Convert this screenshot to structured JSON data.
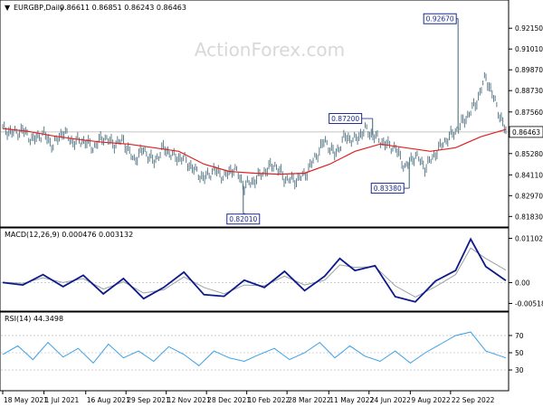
{
  "chart_data": [
    {
      "type": "line",
      "panel": "price",
      "header": {
        "symbol": "EURGBP,Daily",
        "ohlc": "0.86611 0.86851 0.86243 0.86463"
      },
      "watermark": "ActionForex.com",
      "ylim": [
        0.815,
        0.934
      ],
      "yticks": [
        "0.92150",
        "0.91010",
        "0.89870",
        "0.88730",
        "0.87560",
        "0.86463",
        "0.85280",
        "0.84110",
        "0.82970",
        "0.81830"
      ],
      "ytick_values": [
        0.9215,
        0.9101,
        0.8987,
        0.8873,
        0.8756,
        0.86463,
        0.8528,
        0.8411,
        0.8297,
        0.8183
      ],
      "current_price": {
        "label": "0.86463",
        "value": 0.86463
      },
      "series": [
        {
          "kind": "bars",
          "color": "#5d7d8a",
          "x": [
            0,
            0.02,
            0.04,
            0.06,
            0.08,
            0.1,
            0.12,
            0.14,
            0.16,
            0.18,
            0.2,
            0.22,
            0.24,
            0.26,
            0.28,
            0.3,
            0.32,
            0.34,
            0.36,
            0.38,
            0.4,
            0.42,
            0.44,
            0.46,
            0.48,
            0.5,
            0.52,
            0.54,
            0.56,
            0.58,
            0.6,
            0.62,
            0.64,
            0.66,
            0.68,
            0.7,
            0.72,
            0.74,
            0.76,
            0.78,
            0.8,
            0.82,
            0.84,
            0.86,
            0.88,
            0.9,
            0.92,
            0.94,
            0.96,
            0.98,
            1.0
          ],
          "values": [
            0.8665,
            0.864,
            0.8655,
            0.86,
            0.864,
            0.857,
            0.865,
            0.859,
            0.86,
            0.856,
            0.862,
            0.858,
            0.86,
            0.849,
            0.855,
            0.848,
            0.856,
            0.851,
            0.85,
            0.844,
            0.839,
            0.844,
            0.84,
            0.845,
            0.835,
            0.838,
            0.843,
            0.847,
            0.839,
            0.838,
            0.841,
            0.85,
            0.86,
            0.852,
            0.862,
            0.86,
            0.866,
            0.862,
            0.858,
            0.856,
            0.845,
            0.852,
            0.845,
            0.853,
            0.86,
            0.865,
            0.872,
            0.88,
            0.895,
            0.88,
            0.8646
          ]
        },
        {
          "kind": "ma",
          "color": "#e02020",
          "x": [
            0,
            0.05,
            0.1,
            0.15,
            0.2,
            0.25,
            0.3,
            0.35,
            0.4,
            0.45,
            0.5,
            0.55,
            0.6,
            0.65,
            0.7,
            0.75,
            0.8,
            0.85,
            0.9,
            0.95,
            1.0
          ],
          "values": [
            0.8665,
            0.865,
            0.8625,
            0.8605,
            0.859,
            0.858,
            0.856,
            0.854,
            0.847,
            0.843,
            0.842,
            0.8415,
            0.842,
            0.847,
            0.854,
            0.858,
            0.856,
            0.854,
            0.856,
            0.862,
            0.866
          ]
        }
      ],
      "annotations": [
        {
          "label": "0.92670",
          "x": 0.905,
          "value": 0.9267
        },
        {
          "label": "0.87200",
          "x": 0.735,
          "value": 0.872
        },
        {
          "label": "0.83380",
          "x": 0.808,
          "value": 0.8338
        },
        {
          "label": "0.82010",
          "x": 0.478,
          "value": 0.8201
        }
      ]
    },
    {
      "type": "line",
      "panel": "macd",
      "header": {
        "label": "MACD(12,26,9) 0.000476 0.003132"
      },
      "ylim": [
        -0.0062,
        0.0118
      ],
      "yticks": [
        "0.011023",
        "0.00",
        "-0.005182"
      ],
      "ytick_values": [
        0.011023,
        0.0,
        -0.005182
      ],
      "series": [
        {
          "kind": "macd",
          "color": "#0d1a8a",
          "x": [
            0,
            0.04,
            0.08,
            0.12,
            0.16,
            0.2,
            0.24,
            0.28,
            0.32,
            0.36,
            0.4,
            0.44,
            0.48,
            0.52,
            0.56,
            0.6,
            0.64,
            0.67,
            0.7,
            0.74,
            0.78,
            0.82,
            0.86,
            0.9,
            0.93,
            0.96,
            1.0
          ],
          "values": [
            0.0,
            -0.0006,
            0.002,
            -0.001,
            0.0018,
            -0.0028,
            0.001,
            -0.004,
            -0.0012,
            0.0026,
            -0.003,
            -0.0034,
            0.0006,
            -0.0012,
            0.0028,
            -0.002,
            0.0016,
            0.006,
            0.003,
            0.0042,
            -0.0035,
            -0.0048,
            0.0004,
            0.003,
            0.0108,
            0.004,
            0.0005
          ]
        },
        {
          "kind": "signal",
          "color": "#9aa0a6",
          "x": [
            0,
            0.04,
            0.08,
            0.12,
            0.16,
            0.2,
            0.24,
            0.28,
            0.32,
            0.36,
            0.4,
            0.44,
            0.48,
            0.52,
            0.56,
            0.6,
            0.64,
            0.67,
            0.7,
            0.74,
            0.78,
            0.82,
            0.86,
            0.9,
            0.93,
            0.96,
            1.0
          ],
          "values": [
            0.0001,
            -0.0002,
            0.0012,
            0.0,
            0.001,
            -0.0016,
            0.0002,
            -0.0026,
            -0.0018,
            0.0014,
            -0.0012,
            -0.0028,
            -0.0006,
            -0.0008,
            0.0016,
            -0.0006,
            0.0006,
            0.0044,
            0.0038,
            0.004,
            -0.0008,
            -0.0036,
            -0.001,
            0.002,
            0.0086,
            0.006,
            0.0031
          ]
        }
      ]
    },
    {
      "type": "line",
      "panel": "rsi",
      "header": {
        "label": "RSI(14) 44.3498"
      },
      "ylim": [
        8,
        92
      ],
      "yticks": [
        "70",
        "50",
        "30"
      ],
      "ytick_values": [
        70,
        50,
        30
      ],
      "series": [
        {
          "kind": "rsi",
          "color": "#3aa0e6",
          "x": [
            0,
            0.03,
            0.06,
            0.09,
            0.12,
            0.15,
            0.18,
            0.21,
            0.24,
            0.27,
            0.3,
            0.33,
            0.36,
            0.39,
            0.42,
            0.45,
            0.48,
            0.51,
            0.54,
            0.57,
            0.6,
            0.63,
            0.66,
            0.69,
            0.72,
            0.75,
            0.78,
            0.81,
            0.84,
            0.87,
            0.9,
            0.93,
            0.96,
            1.0
          ],
          "values": [
            48,
            58,
            42,
            62,
            45,
            55,
            38,
            60,
            44,
            52,
            40,
            57,
            48,
            35,
            52,
            44,
            40,
            48,
            55,
            42,
            50,
            62,
            44,
            58,
            46,
            40,
            52,
            38,
            50,
            60,
            70,
            74,
            52,
            44
          ]
        }
      ]
    }
  ],
  "x_axis": {
    "labels": [
      "18 May 2021",
      "1 Jul 2021",
      "16 Aug 2021",
      "29 Sep 2021",
      "12 Nov 2021",
      "28 Dec 2021",
      "10 Feb 2022",
      "28 Mar 2022",
      "11 May 2022",
      "24 Jun 2022",
      "9 Aug 2022",
      "22 Sep 2022"
    ],
    "positions": [
      0.0,
      0.082,
      0.165,
      0.245,
      0.325,
      0.405,
      0.485,
      0.565,
      0.648,
      0.728,
      0.81,
      0.89
    ]
  },
  "colors": {
    "grid": "#c8c8c8",
    "axis": "#000000",
    "label_box_fill": "#ffffff",
    "label_box_stroke": "#1b2a8f",
    "watermark": "#d8d8d8"
  }
}
